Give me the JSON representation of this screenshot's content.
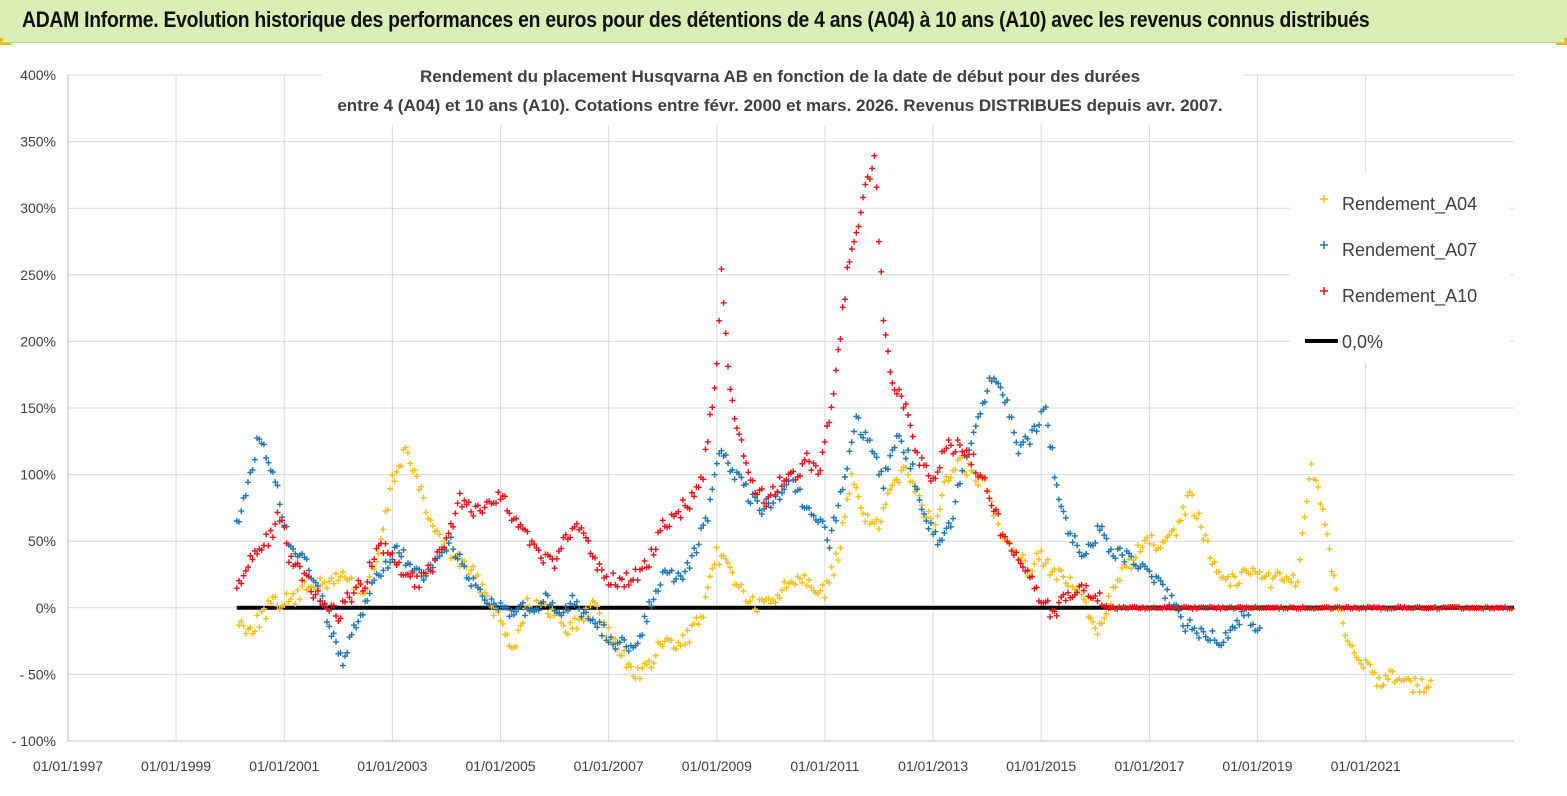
{
  "banner": {
    "title": "ADAM Informe. Evolution historique des performances en euros pour des détentions de 4 ans (A04) à 10 ans (A10) avec les revenus connus distribués"
  },
  "colors": {
    "banner_bg": "#d9efb5",
    "corner_accent": "#f5b800",
    "a04": "#f5c01a",
    "a07": "#1f77b4",
    "a10": "#e8141c",
    "zero_line": "#000000"
  },
  "chart_data": {
    "type": "scatter",
    "title_line1": "Rendement du placement Husqvarna AB en fonction de la date de début pour des durées",
    "title_line2": "entre 4 (A04) et 10 ans (A10). Cotations entre févr. 2000 et mars. 2026. Revenus DISTRIBUES depuis avr. 2007.",
    "x_tick_labels": [
      "01/01/1997",
      "01/01/1999",
      "01/01/2001",
      "01/01/2003",
      "01/01/2005",
      "01/01/2007",
      "01/01/2009",
      "01/01/2011",
      "01/01/2013",
      "01/01/2015",
      "01/01/2017",
      "01/01/2019",
      "01/01/2021"
    ],
    "y_tick_labels": [
      "400%",
      "350%",
      "300%",
      "250%",
      "200%",
      "150%",
      "100%",
      "50%",
      "0%",
      "- 50%",
      "- 100%"
    ],
    "xlim": [
      "1997-01-01",
      "2023-09-30"
    ],
    "ylim": [
      -100,
      400
    ],
    "grid": true,
    "legend_position": "top-right",
    "legend": [
      "Rendement_A04",
      "Rendement_A07",
      "Rendement_A10",
      "0,0%"
    ],
    "series": [
      {
        "name": "Rendement_A04",
        "color": "#f5c01a",
        "points": [
          [
            "2000-03-01",
            -12
          ],
          [
            "2000-06-01",
            -15
          ],
          [
            "2000-10-01",
            2
          ],
          [
            "2001-01-01",
            5
          ],
          [
            "2001-04-01",
            8
          ],
          [
            "2001-07-01",
            20
          ],
          [
            "2001-10-01",
            15
          ],
          [
            "2002-01-01",
            25
          ],
          [
            "2002-04-01",
            20
          ],
          [
            "2002-07-01",
            10
          ],
          [
            "2002-10-01",
            40
          ],
          [
            "2003-01-01",
            95
          ],
          [
            "2003-04-01",
            120
          ],
          [
            "2003-07-01",
            90
          ],
          [
            "2003-10-01",
            60
          ],
          [
            "2004-01-01",
            45
          ],
          [
            "2004-04-01",
            35
          ],
          [
            "2004-07-01",
            25
          ],
          [
            "2004-10-01",
            10
          ],
          [
            "2005-01-01",
            -10
          ],
          [
            "2005-04-01",
            -30
          ],
          [
            "2005-07-01",
            5
          ],
          [
            "2005-10-01",
            0
          ],
          [
            "2006-01-01",
            -5
          ],
          [
            "2006-04-01",
            -15
          ],
          [
            "2006-07-01",
            -10
          ],
          [
            "2006-10-01",
            5
          ],
          [
            "2007-01-01",
            -20
          ],
          [
            "2007-04-01",
            -35
          ],
          [
            "2007-07-01",
            -50
          ],
          [
            "2007-10-01",
            -45
          ],
          [
            "2008-01-01",
            -25
          ],
          [
            "2008-04-01",
            -30
          ],
          [
            "2008-07-01",
            -20
          ],
          [
            "2008-10-01",
            -5
          ],
          [
            "2009-01-01",
            40
          ],
          [
            "2009-04-01",
            30
          ],
          [
            "2009-07-01",
            10
          ],
          [
            "2009-10-01",
            0
          ],
          [
            "2010-01-01",
            5
          ],
          [
            "2010-04-01",
            15
          ],
          [
            "2010-07-01",
            25
          ],
          [
            "2010-10-01",
            20
          ],
          [
            "2011-01-01",
            10
          ],
          [
            "2011-04-01",
            40
          ],
          [
            "2011-07-01",
            95
          ],
          [
            "2011-10-01",
            70
          ],
          [
            "2012-01-01",
            60
          ],
          [
            "2012-04-01",
            90
          ],
          [
            "2012-07-01",
            110
          ],
          [
            "2012-10-01",
            80
          ],
          [
            "2013-01-01",
            60
          ],
          [
            "2013-04-01",
            95
          ],
          [
            "2013-07-01",
            110
          ],
          [
            "2013-10-01",
            100
          ],
          [
            "2014-01-01",
            90
          ],
          [
            "2014-04-01",
            60
          ],
          [
            "2014-07-01",
            45
          ],
          [
            "2014-10-01",
            30
          ],
          [
            "2015-01-01",
            40
          ],
          [
            "2015-04-01",
            25
          ],
          [
            "2015-07-01",
            20
          ],
          [
            "2015-10-01",
            10
          ],
          [
            "2016-01-01",
            -20
          ],
          [
            "2016-04-01",
            5
          ],
          [
            "2016-07-01",
            25
          ],
          [
            "2016-10-01",
            40
          ],
          [
            "2017-01-01",
            50
          ],
          [
            "2017-04-01",
            45
          ],
          [
            "2017-07-01",
            55
          ],
          [
            "2017-10-01",
            85
          ],
          [
            "2018-01-01",
            55
          ],
          [
            "2018-04-01",
            30
          ],
          [
            "2018-07-01",
            20
          ],
          [
            "2018-10-01",
            25
          ],
          [
            "2019-01-01",
            30
          ],
          [
            "2019-04-01",
            20
          ],
          [
            "2019-07-01",
            25
          ],
          [
            "2019-10-01",
            20
          ],
          [
            "2020-01-01",
            110
          ],
          [
            "2020-04-01",
            60
          ],
          [
            "2020-07-01",
            0
          ],
          [
            "2020-10-01",
            -30
          ],
          [
            "2021-01-01",
            -45
          ],
          [
            "2021-04-01",
            -55
          ],
          [
            "2021-07-01",
            -50
          ],
          [
            "2021-10-01",
            -55
          ],
          [
            "2022-01-01",
            -60
          ],
          [
            "2022-04-01",
            -55
          ]
        ]
      },
      {
        "name": "Rendement_A07",
        "color": "#1f77b4",
        "points": [
          [
            "2000-02-15",
            60
          ],
          [
            "2000-05-01",
            90
          ],
          [
            "2000-07-01",
            125
          ],
          [
            "2000-09-01",
            115
          ],
          [
            "2000-11-01",
            95
          ],
          [
            "2001-01-01",
            60
          ],
          [
            "2001-03-01",
            40
          ],
          [
            "2001-06-01",
            35
          ],
          [
            "2001-09-01",
            10
          ],
          [
            "2001-12-01",
            -25
          ],
          [
            "2002-02-01",
            -40
          ],
          [
            "2002-05-01",
            -10
          ],
          [
            "2002-08-01",
            10
          ],
          [
            "2002-11-01",
            30
          ],
          [
            "2003-02-01",
            45
          ],
          [
            "2003-05-01",
            30
          ],
          [
            "2003-08-01",
            20
          ],
          [
            "2003-11-01",
            35
          ],
          [
            "2004-02-01",
            50
          ],
          [
            "2004-05-01",
            30
          ],
          [
            "2004-08-01",
            10
          ],
          [
            "2004-11-01",
            5
          ],
          [
            "2005-02-01",
            -5
          ],
          [
            "2005-05-01",
            0
          ],
          [
            "2005-08-01",
            -5
          ],
          [
            "2005-11-01",
            5
          ],
          [
            "2006-02-01",
            -5
          ],
          [
            "2006-05-01",
            5
          ],
          [
            "2006-08-01",
            -5
          ],
          [
            "2006-11-01",
            -15
          ],
          [
            "2007-02-01",
            -25
          ],
          [
            "2007-05-01",
            -30
          ],
          [
            "2007-08-01",
            -20
          ],
          [
            "2007-11-01",
            10
          ],
          [
            "2008-02-01",
            30
          ],
          [
            "2008-05-01",
            20
          ],
          [
            "2008-08-01",
            40
          ],
          [
            "2008-11-01",
            70
          ],
          [
            "2009-02-01",
            120
          ],
          [
            "2009-05-01",
            100
          ],
          [
            "2009-08-01",
            85
          ],
          [
            "2009-11-01",
            75
          ],
          [
            "2010-02-01",
            80
          ],
          [
            "2010-05-01",
            100
          ],
          [
            "2010-08-01",
            80
          ],
          [
            "2010-11-01",
            70
          ],
          [
            "2011-02-01",
            50
          ],
          [
            "2011-05-01",
            90
          ],
          [
            "2011-08-01",
            140
          ],
          [
            "2011-11-01",
            120
          ],
          [
            "2012-02-01",
            95
          ],
          [
            "2012-05-01",
            130
          ],
          [
            "2012-08-01",
            110
          ],
          [
            "2012-11-01",
            70
          ],
          [
            "2013-02-01",
            50
          ],
          [
            "2013-05-01",
            60
          ],
          [
            "2013-08-01",
            115
          ],
          [
            "2013-11-01",
            140
          ],
          [
            "2014-02-01",
            175
          ],
          [
            "2014-05-01",
            160
          ],
          [
            "2014-08-01",
            120
          ],
          [
            "2014-11-01",
            130
          ],
          [
            "2015-02-01",
            150
          ],
          [
            "2015-05-01",
            80
          ],
          [
            "2015-08-01",
            50
          ],
          [
            "2015-11-01",
            40
          ],
          [
            "2016-02-01",
            60
          ],
          [
            "2016-05-01",
            40
          ],
          [
            "2016-08-01",
            40
          ],
          [
            "2016-11-01",
            30
          ],
          [
            "2017-02-01",
            20
          ],
          [
            "2017-05-01",
            10
          ],
          [
            "2017-08-01",
            -10
          ],
          [
            "2017-11-01",
            -15
          ],
          [
            "2018-02-01",
            -20
          ],
          [
            "2018-05-01",
            -25
          ],
          [
            "2018-08-01",
            -10
          ],
          [
            "2018-11-01",
            -5
          ],
          [
            "2019-02-01",
            -20
          ]
        ]
      },
      {
        "name": "Rendement_A10",
        "color": "#e8141c",
        "points": [
          [
            "2000-02-15",
            15
          ],
          [
            "2000-04-01",
            25
          ],
          [
            "2000-06-01",
            40
          ],
          [
            "2000-08-01",
            45
          ],
          [
            "2000-10-01",
            55
          ],
          [
            "2000-12-01",
            70
          ],
          [
            "2001-02-01",
            40
          ],
          [
            "2001-04-01",
            30
          ],
          [
            "2001-07-01",
            15
          ],
          [
            "2001-10-01",
            0
          ],
          [
            "2002-01-01",
            -5
          ],
          [
            "2002-04-01",
            10
          ],
          [
            "2002-07-01",
            20
          ],
          [
            "2002-10-01",
            45
          ],
          [
            "2003-01-01",
            40
          ],
          [
            "2003-04-01",
            25
          ],
          [
            "2003-07-01",
            20
          ],
          [
            "2003-10-01",
            30
          ],
          [
            "2004-01-01",
            50
          ],
          [
            "2004-04-01",
            80
          ],
          [
            "2004-07-01",
            75
          ],
          [
            "2004-10-01",
            75
          ],
          [
            "2005-01-01",
            85
          ],
          [
            "2005-04-01",
            65
          ],
          [
            "2005-07-01",
            55
          ],
          [
            "2005-10-01",
            40
          ],
          [
            "2006-01-01",
            30
          ],
          [
            "2006-04-01",
            55
          ],
          [
            "2006-07-01",
            60
          ],
          [
            "2006-10-01",
            35
          ],
          [
            "2007-01-01",
            20
          ],
          [
            "2007-04-01",
            20
          ],
          [
            "2007-07-01",
            25
          ],
          [
            "2007-10-01",
            35
          ],
          [
            "2008-01-01",
            60
          ],
          [
            "2008-04-01",
            70
          ],
          [
            "2008-07-01",
            80
          ],
          [
            "2008-10-01",
            100
          ],
          [
            "2009-01-01",
            180
          ],
          [
            "2009-02-01",
            260
          ],
          [
            "2009-04-01",
            160
          ],
          [
            "2009-06-01",
            130
          ],
          [
            "2009-09-01",
            90
          ],
          [
            "2009-12-01",
            80
          ],
          [
            "2010-03-01",
            95
          ],
          [
            "2010-06-01",
            100
          ],
          [
            "2010-09-01",
            110
          ],
          [
            "2010-12-01",
            105
          ],
          [
            "2011-03-01",
            160
          ],
          [
            "2011-06-01",
            250
          ],
          [
            "2011-09-01",
            300
          ],
          [
            "2011-12-01",
            340
          ],
          [
            "2012-02-01",
            220
          ],
          [
            "2012-04-01",
            170
          ],
          [
            "2012-07-01",
            150
          ],
          [
            "2012-10-01",
            110
          ],
          [
            "2013-01-01",
            95
          ],
          [
            "2013-04-01",
            120
          ],
          [
            "2013-07-01",
            120
          ],
          [
            "2013-10-01",
            110
          ],
          [
            "2014-01-01",
            90
          ],
          [
            "2014-04-01",
            60
          ],
          [
            "2014-07-01",
            45
          ],
          [
            "2014-10-01",
            30
          ],
          [
            "2015-01-01",
            5
          ],
          [
            "2015-04-01",
            -5
          ],
          [
            "2015-07-01",
            10
          ],
          [
            "2015-10-01",
            15
          ],
          [
            "2016-01-01",
            10
          ],
          [
            "2016-04-01",
            0
          ],
          [
            "2017-01-01",
            0
          ],
          [
            "2018-01-01",
            0
          ],
          [
            "2019-01-01",
            0
          ],
          [
            "2020-01-01",
            0
          ],
          [
            "2021-01-01",
            0
          ],
          [
            "2022-01-01",
            0
          ],
          [
            "2023-09-30",
            0
          ]
        ]
      },
      {
        "name": "0,0%",
        "color": "#000000",
        "points": [
          [
            "2000-02-15",
            0
          ],
          [
            "2023-09-30",
            0
          ]
        ]
      }
    ]
  }
}
